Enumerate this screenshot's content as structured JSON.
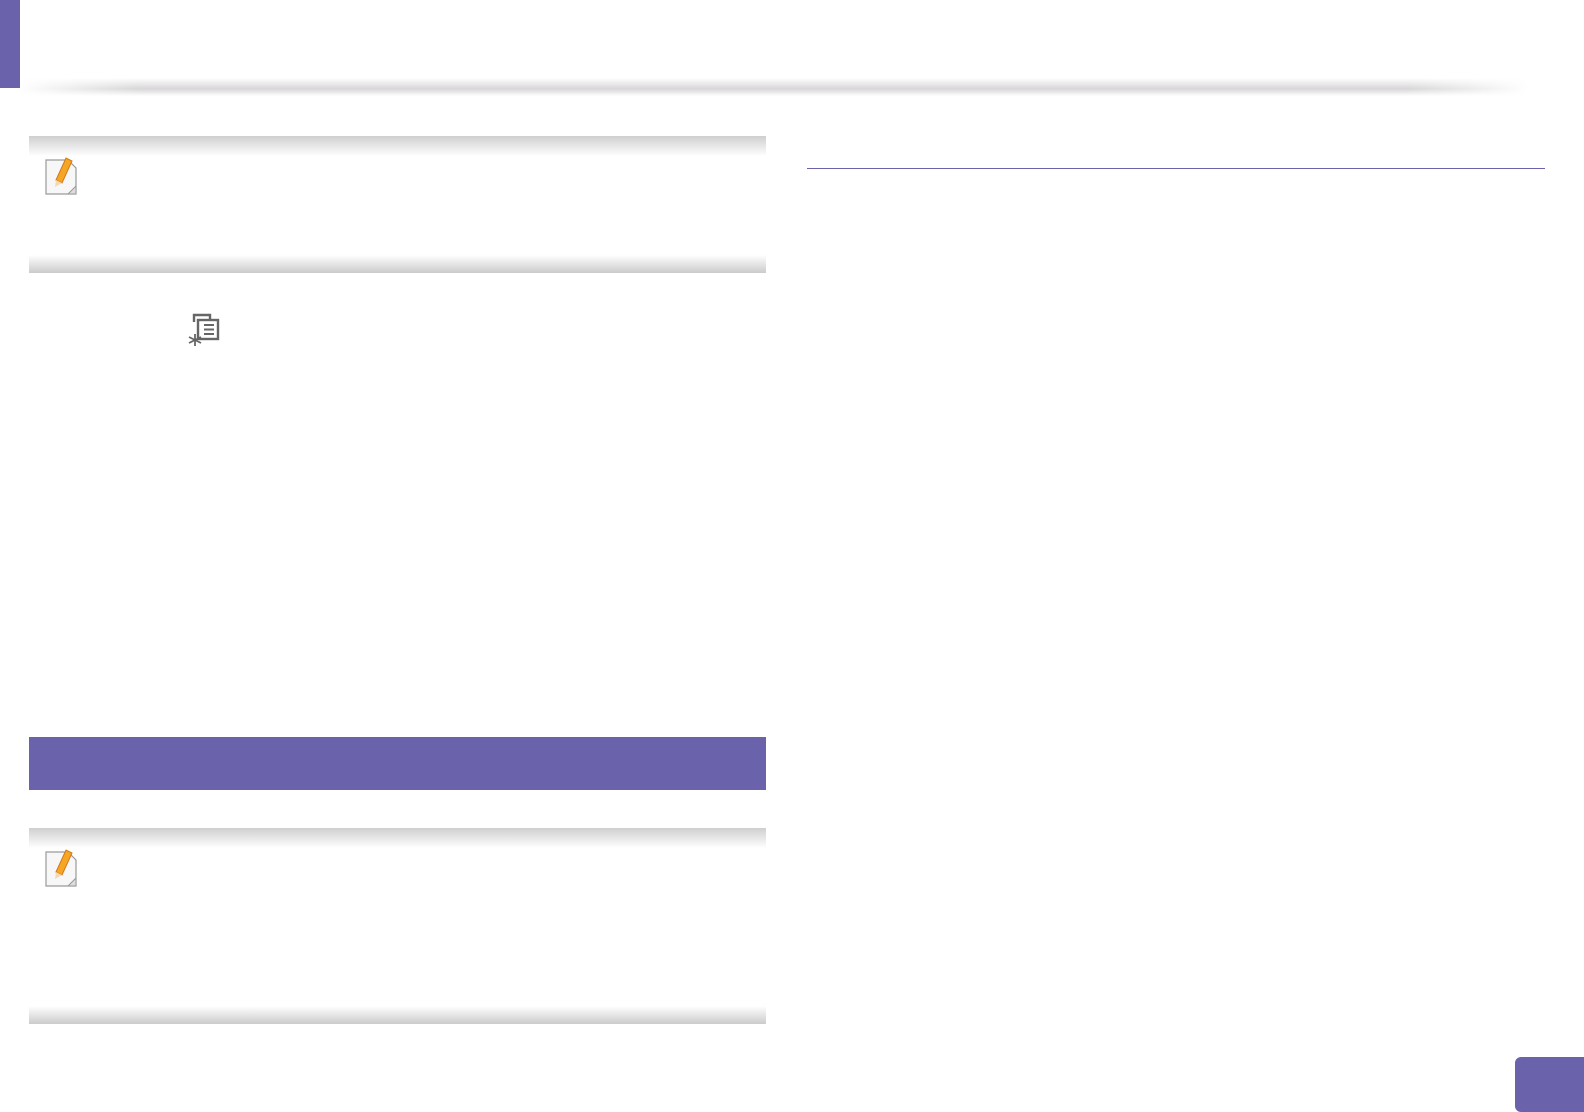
{
  "colors": {
    "accent": "#6a63ab",
    "note_band": "#cfcfcf",
    "pencil": "#f5a623"
  },
  "icons": {
    "note_icon": "note-pencil-icon",
    "menu_icon": "menu-asterisk-icon"
  }
}
